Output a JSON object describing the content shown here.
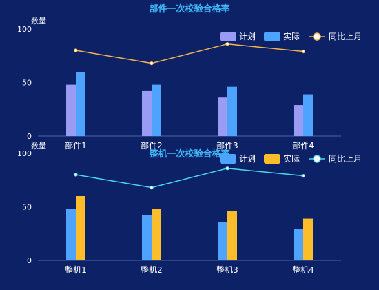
{
  "colors": {
    "background": "#0d2266",
    "title": "#3fb6f5",
    "text": "#ffffff",
    "axis": "#4a63b0",
    "plan_top": "#9a9bf3",
    "actual_top": "#4ea3ff",
    "line_top": "#f5b54a",
    "plan_bottom": "#4ea3ff",
    "actual_bottom": "#fbbd2a",
    "line_bottom": "#4ad8ec"
  },
  "chart_data": [
    {
      "type": "bar",
      "title": "部件一次校验合格率",
      "ylabel": "数量",
      "ylim": [
        0,
        100
      ],
      "yticks": [
        0,
        50,
        100
      ],
      "categories": [
        "部件1",
        "部件2",
        "部件3",
        "部件4"
      ],
      "series": [
        {
          "name": "计划",
          "kind": "bar",
          "values": [
            48,
            42,
            36,
            29
          ]
        },
        {
          "name": "实际",
          "kind": "bar",
          "values": [
            60,
            48,
            46,
            39
          ]
        },
        {
          "name": "同比上月",
          "kind": "line",
          "values": [
            80,
            68,
            86,
            79
          ]
        }
      ],
      "legend": "top-right"
    },
    {
      "type": "bar",
      "title": "整机一次校验合格率",
      "ylabel": "数量",
      "ylim": [
        0,
        100
      ],
      "yticks": [
        0,
        50,
        100
      ],
      "categories": [
        "整机1",
        "整机2",
        "整机3",
        "整机4"
      ],
      "series": [
        {
          "name": "计划",
          "kind": "bar",
          "values": [
            48,
            42,
            36,
            29
          ]
        },
        {
          "name": "实际",
          "kind": "bar",
          "values": [
            60,
            48,
            46,
            39
          ]
        },
        {
          "name": "同比上月",
          "kind": "line",
          "values": [
            80,
            68,
            86,
            79
          ]
        }
      ],
      "legend": "top-right"
    }
  ]
}
